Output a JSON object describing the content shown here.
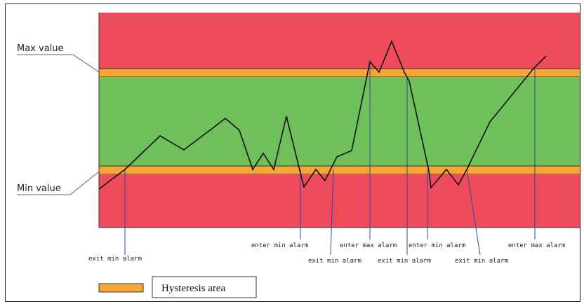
{
  "labels": {
    "max_value": "Max value",
    "min_value": "Min value"
  },
  "legend": {
    "label": "Hysteresis area",
    "swatch_color": "#f7a534"
  },
  "colors": {
    "alarm_zone": "#ee4b5d",
    "normal_zone": "#6fc05a",
    "hysteresis_band": "#f7a534",
    "signal_line": "#111111",
    "event_marker": "#2f47a8"
  },
  "events": [
    {
      "text": "exit min alarm"
    },
    {
      "text": "enter min alarm"
    },
    {
      "text": "exit min alarm"
    },
    {
      "text": "enter max alarm"
    },
    {
      "text": "exit min alarm"
    },
    {
      "text": "enter min alarm"
    },
    {
      "text": "exit min alarm"
    },
    {
      "text": "enter max alarm"
    }
  ]
}
